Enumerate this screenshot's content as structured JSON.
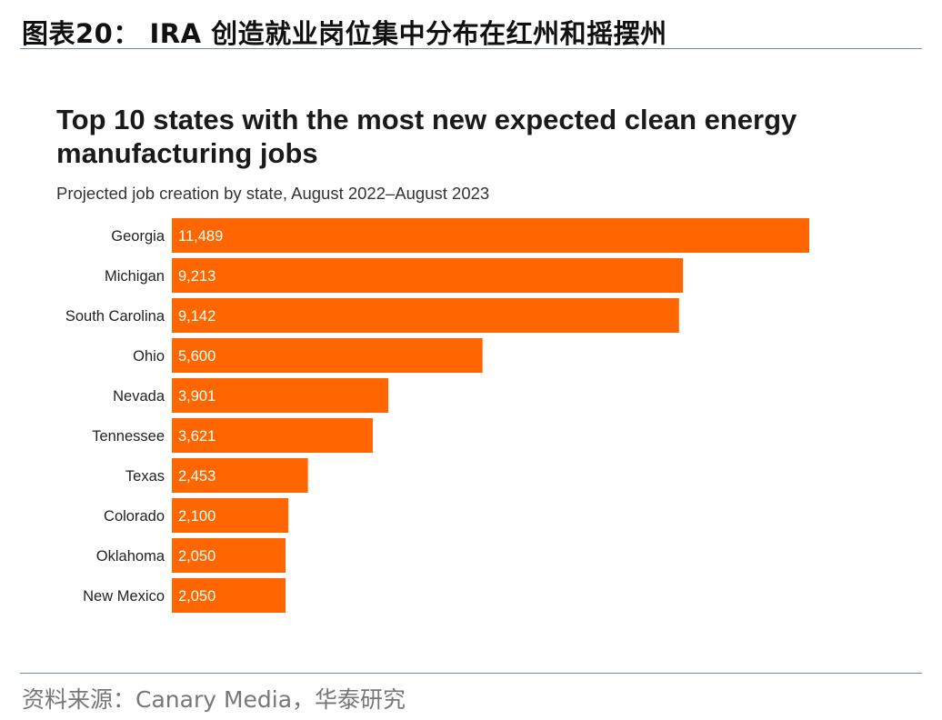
{
  "figure": {
    "title": "图表20： IRA 创造就业岗位集中分布在红州和摇摆州",
    "source": "资料来源：Canary Media，华泰研究"
  },
  "chart_data": {
    "type": "bar",
    "orientation": "horizontal",
    "title": "Top 10 states with the most new expected clean energy manufacturing jobs",
    "subtitle": "Projected job creation by state, August 2022–August 2023",
    "categories": [
      "Georgia",
      "Michigan",
      "South Carolina",
      "Ohio",
      "Nevada",
      "Tennessee",
      "Texas",
      "Colorado",
      "Oklahoma",
      "New Mexico"
    ],
    "values": [
      11489,
      9213,
      9142,
      5600,
      3901,
      3621,
      2453,
      2100,
      2050,
      2050
    ],
    "value_labels": [
      "11,489",
      "9,213",
      "9,142",
      "5,600",
      "3,901",
      "3,621",
      "2,453",
      "2,100",
      "2,050",
      "2,050"
    ],
    "bar_color": "#ff6600",
    "label_color": "#ffffff",
    "grid": false,
    "legend": "none"
  }
}
